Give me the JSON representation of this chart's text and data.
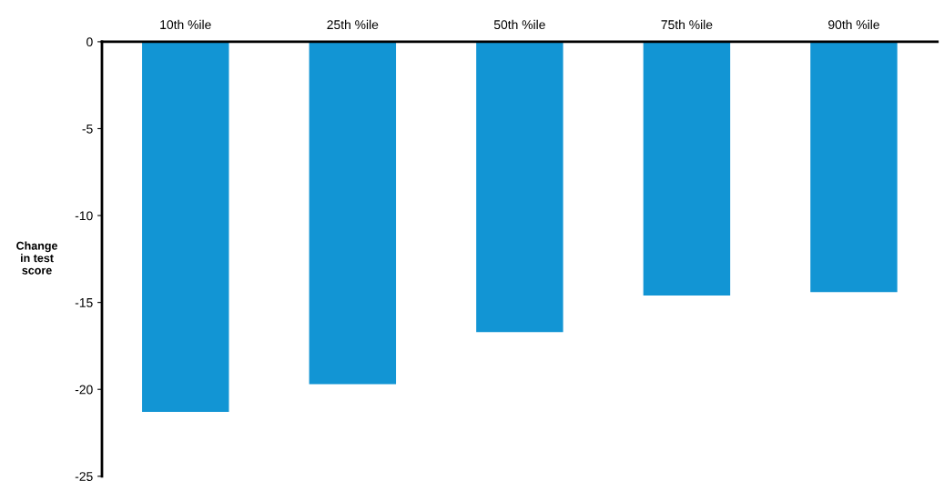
{
  "chart_data": {
    "type": "bar",
    "ylabel": "Change\nin test\nscore",
    "categories": [
      "10th %ile",
      "25th %ile",
      "50th %ile",
      "75th %ile",
      "90th %ile"
    ],
    "values": [
      -21.3,
      -19.7,
      -16.7,
      -14.6,
      -14.4
    ],
    "color": "#1295d4",
    "ylim": [
      -25,
      0
    ],
    "yticks": [
      -25,
      -20,
      -15,
      -10,
      -5,
      0
    ],
    "grid": false,
    "legend": false
  }
}
